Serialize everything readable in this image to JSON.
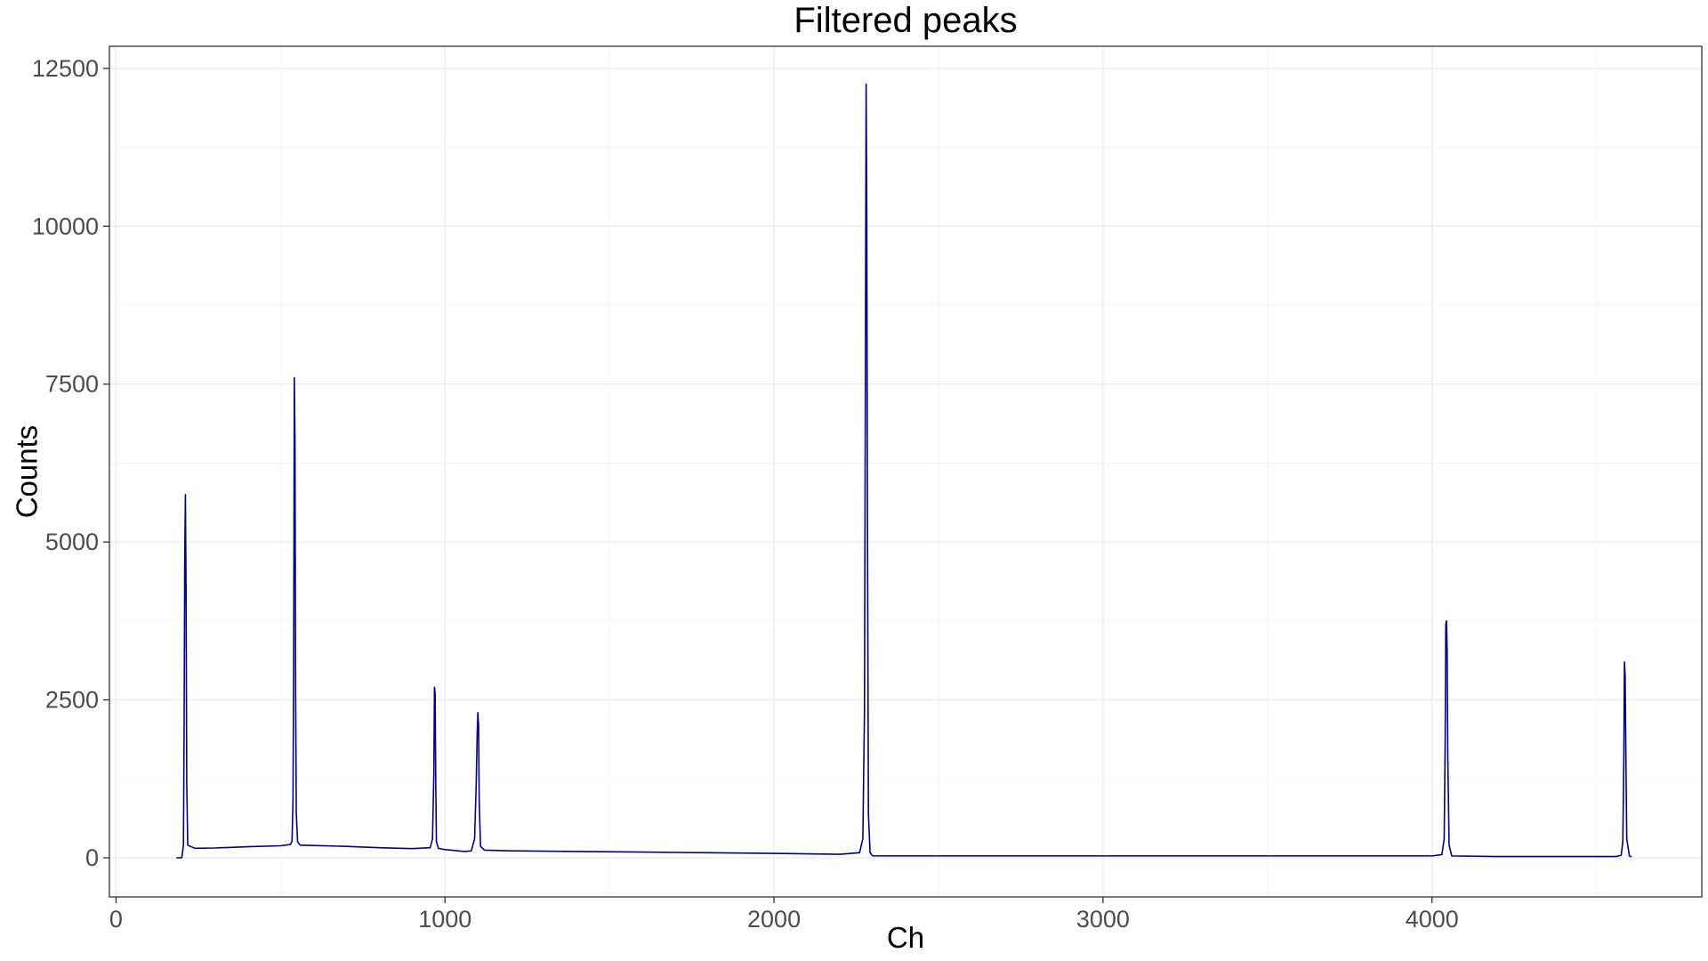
{
  "chart_data": {
    "type": "line",
    "title": "Filtered peaks",
    "xlabel": "Ch",
    "ylabel": "Counts",
    "xlim": [
      -20,
      4820
    ],
    "ylim": [
      -620,
      12850
    ],
    "x_ticks": [
      0,
      1000,
      2000,
      3000,
      4000
    ],
    "x_tick_labels": [
      "0",
      "1000",
      "2000",
      "3000",
      "4000"
    ],
    "y_ticks": [
      0,
      2500,
      5000,
      7500,
      10000,
      12500
    ],
    "y_tick_labels": [
      "0",
      "2500",
      "5000",
      "7500",
      "10000",
      "12500"
    ],
    "grid": true,
    "theme": "bw",
    "series": [
      {
        "color": "#00008b",
        "x": [
          185,
          200,
          205,
          207,
          209,
          211,
          213,
          215,
          218,
          240,
          300,
          400,
          500,
          530,
          535,
          538,
          540,
          542,
          544,
          546,
          548,
          552,
          560,
          600,
          700,
          800,
          900,
          955,
          962,
          966,
          968,
          970,
          972,
          974,
          980,
          1000,
          1060,
          1080,
          1090,
          1095,
          1098,
          1100,
          1102,
          1104,
          1108,
          1120,
          1200,
          1400,
          1600,
          1800,
          2000,
          2200,
          2260,
          2270,
          2275,
          2278,
          2280,
          2282,
          2284,
          2287,
          2292,
          2300,
          2400,
          2600,
          2800,
          3000,
          3200,
          3400,
          3600,
          3800,
          4000,
          4030,
          4037,
          4040,
          4042,
          4044,
          4046,
          4048,
          4052,
          4060,
          4200,
          4400,
          4560,
          4575,
          4580,
          4583,
          4585,
          4587,
          4589,
          4592,
          4600,
          4605
        ],
        "y": [
          0,
          0,
          200,
          2000,
          4800,
          5750,
          4200,
          1200,
          200,
          150,
          155,
          175,
          190,
          210,
          260,
          900,
          3000,
          7600,
          6600,
          2600,
          700,
          250,
          200,
          195,
          180,
          160,
          145,
          160,
          300,
          1300,
          2700,
          2600,
          1100,
          250,
          150,
          130,
          100,
          110,
          300,
          1200,
          2000,
          2300,
          2100,
          900,
          180,
          120,
          110,
          100,
          90,
          80,
          70,
          55,
          80,
          300,
          2300,
          8000,
          12250,
          10200,
          5500,
          700,
          80,
          30,
          30,
          30,
          30,
          30,
          30,
          30,
          30,
          30,
          30,
          50,
          300,
          1800,
          3700,
          3750,
          3300,
          1600,
          200,
          30,
          20,
          20,
          20,
          40,
          250,
          1500,
          3100,
          2900,
          1800,
          300,
          30,
          20
        ]
      }
    ]
  }
}
